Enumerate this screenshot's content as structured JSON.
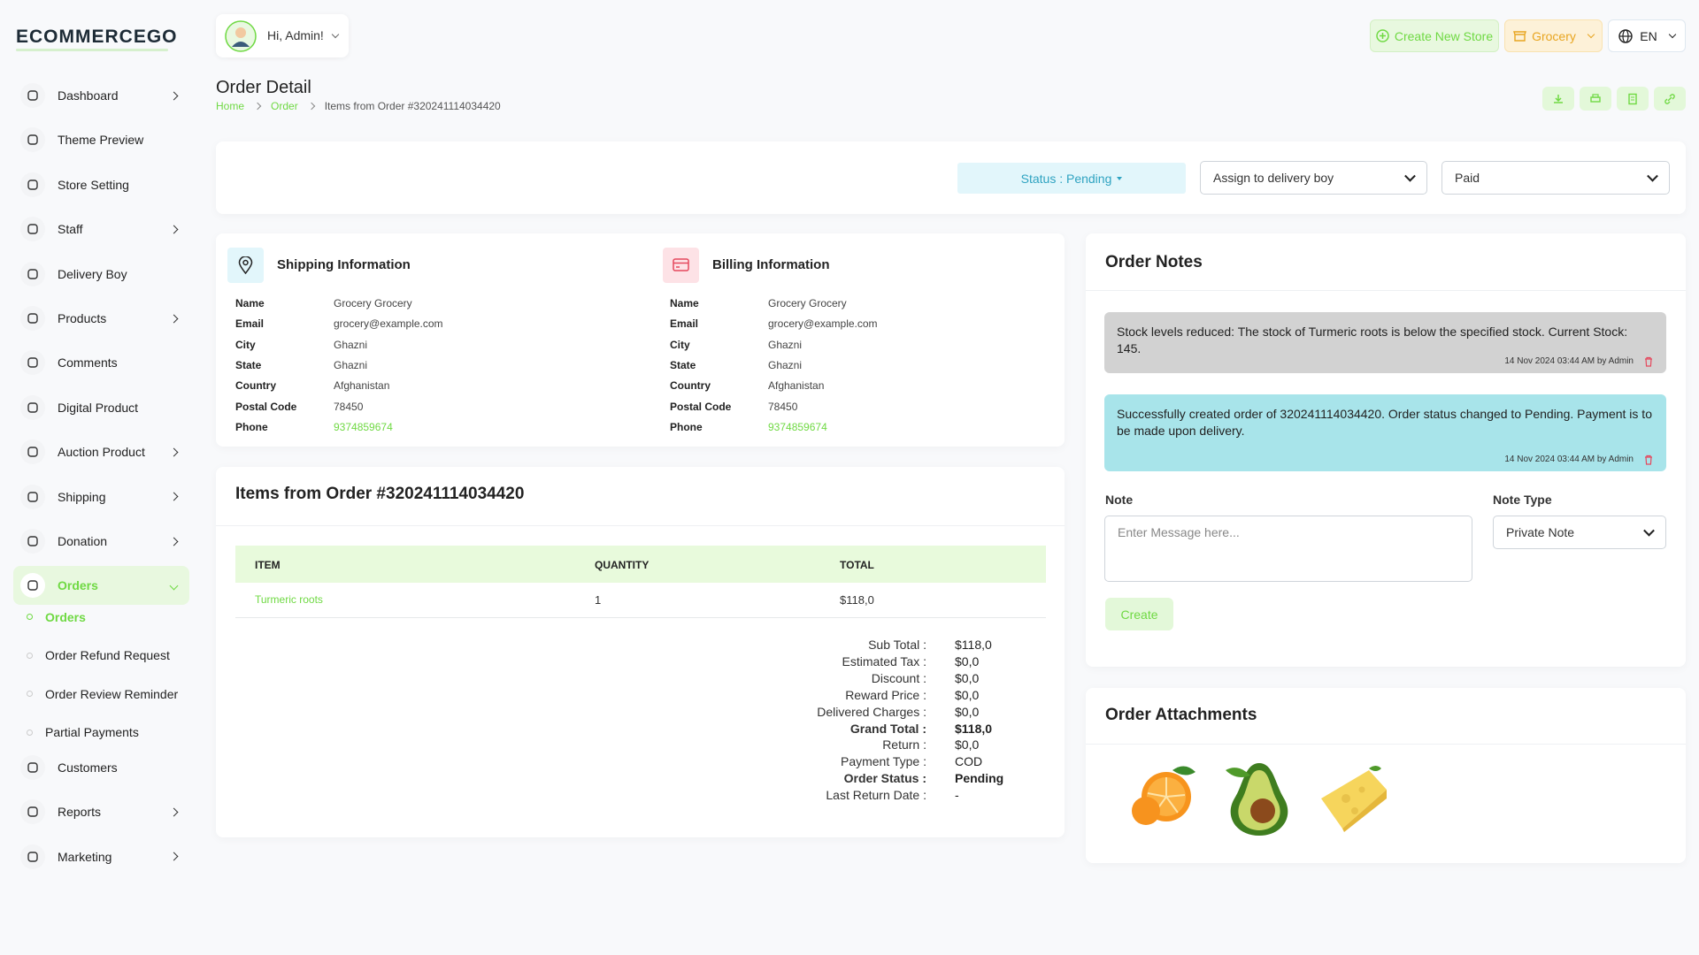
{
  "brand": {
    "logo": "ECOMMERCEGO"
  },
  "header": {
    "greeting": "Hi, Admin!",
    "create_store": "Create New Store",
    "store": "Grocery",
    "language": "EN"
  },
  "sidebar": {
    "items": [
      {
        "label": "Dashboard",
        "submenu": true
      },
      {
        "label": "Theme Preview"
      },
      {
        "label": "Store Setting"
      },
      {
        "label": "Staff",
        "submenu": true
      },
      {
        "label": "Delivery Boy"
      },
      {
        "label": "Products",
        "submenu": true
      },
      {
        "label": "Comments"
      },
      {
        "label": "Digital Product"
      },
      {
        "label": "Auction Product",
        "submenu": true
      },
      {
        "label": "Shipping",
        "submenu": true
      },
      {
        "label": "Donation",
        "submenu": true
      },
      {
        "label": "Orders",
        "submenu": true,
        "open": true,
        "children": [
          {
            "label": "Orders",
            "active": true
          },
          {
            "label": "Order Refund Request"
          },
          {
            "label": "Order Review Reminder"
          },
          {
            "label": "Partial Payments"
          }
        ]
      },
      {
        "label": "Customers"
      },
      {
        "label": "Reports",
        "submenu": true
      },
      {
        "label": "Marketing",
        "submenu": true
      }
    ]
  },
  "page": {
    "title": "Order Detail",
    "breadcrumb": [
      "Home",
      "Order",
      "Items from Order #320241114034420"
    ]
  },
  "status_bar": {
    "status": "Status : Pending",
    "delivery": "Assign to delivery boy",
    "payment": "Paid"
  },
  "shipping": {
    "title": "Shipping Information",
    "rows": [
      [
        "Name",
        "Grocery Grocery"
      ],
      [
        "Email",
        "grocery@example.com"
      ],
      [
        "City",
        "Ghazni"
      ],
      [
        "State",
        "Ghazni"
      ],
      [
        "Country",
        "Afghanistan"
      ],
      [
        "Postal Code",
        "78450"
      ],
      [
        "Phone",
        "9374859674"
      ]
    ]
  },
  "billing": {
    "title": "Billing Information",
    "rows": [
      [
        "Name",
        "Grocery Grocery"
      ],
      [
        "Email",
        "grocery@example.com"
      ],
      [
        "City",
        "Ghazni"
      ],
      [
        "State",
        "Ghazni"
      ],
      [
        "Country",
        "Afghanistan"
      ],
      [
        "Postal Code",
        "78450"
      ],
      [
        "Phone",
        "9374859674"
      ]
    ]
  },
  "items": {
    "title": "Items from Order #320241114034420",
    "columns": [
      "ITEM",
      "QUANTITY",
      "TOTAL"
    ],
    "rows": [
      [
        "Turmeric roots",
        "1",
        "$118,0"
      ]
    ],
    "totals": [
      [
        "Sub Total :",
        "$118,0"
      ],
      [
        "Estimated Tax :",
        "$0,0"
      ],
      [
        "Discount :",
        "$0,0"
      ],
      [
        "Reward Price :",
        "$0,0"
      ],
      [
        "Delivered Charges :",
        "$0,0"
      ],
      [
        "Grand Total :",
        "$118,0"
      ],
      [
        "Return :",
        "$0,0"
      ],
      [
        "Payment Type :",
        "COD"
      ],
      [
        "Order Status :",
        "Pending"
      ],
      [
        "Last Return Date :",
        "-"
      ]
    ]
  },
  "notes": {
    "title": "Order Notes",
    "entries": [
      {
        "text": "Stock levels reduced: The stock of Turmeric roots is below the specified stock. Current Stock: 145.",
        "meta": "14 Nov 2024 03:44 AM by Admin"
      },
      {
        "text": "Successfully created order of 320241114034420. Order status changed to Pending. Payment is to be made upon delivery.",
        "meta": "14 Nov 2024 03:44 AM by Admin"
      }
    ],
    "note_label": "Note",
    "placeholder": "Enter Message here...",
    "type_label": "Note Type",
    "type_value": "Private Note",
    "button": "Create"
  },
  "attachments": {
    "title": "Order Attachments"
  }
}
